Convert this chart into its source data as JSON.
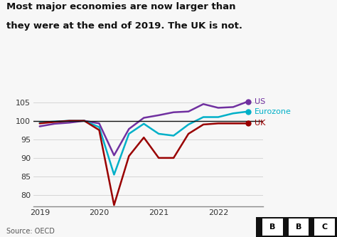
{
  "title_line1": "Most major economies are now larger than",
  "title_line2": "they were at the end of 2019. The UK is not.",
  "source": "Source: OECD",
  "x_labels": [
    "2019",
    "2020",
    "2021",
    "2022"
  ],
  "x_tick_positions": [
    2019.0,
    2020.0,
    2021.0,
    2022.0
  ],
  "us": {
    "label": "US",
    "color": "#7030a0",
    "x": [
      2019.0,
      2019.25,
      2019.5,
      2019.75,
      2020.0,
      2020.25,
      2020.5,
      2020.75,
      2021.0,
      2021.25,
      2021.5,
      2021.75,
      2022.0,
      2022.25,
      2022.5
    ],
    "values": [
      98.5,
      99.2,
      99.5,
      100.0,
      99.3,
      90.7,
      97.8,
      100.8,
      101.5,
      102.3,
      102.5,
      104.5,
      103.5,
      103.7,
      105.2
    ]
  },
  "eurozone": {
    "label": "Eurozone",
    "color": "#00b0c8",
    "x": [
      2019.0,
      2019.25,
      2019.5,
      2019.75,
      2020.0,
      2020.25,
      2020.5,
      2020.75,
      2021.0,
      2021.25,
      2021.5,
      2021.75,
      2022.0,
      2022.25,
      2022.5
    ],
    "values": [
      99.5,
      99.8,
      100.0,
      100.0,
      98.3,
      85.5,
      96.5,
      99.2,
      96.5,
      96.0,
      99.0,
      101.0,
      101.0,
      102.0,
      102.5
    ]
  },
  "uk": {
    "label": "UK",
    "color": "#990000",
    "x": [
      2019.0,
      2019.25,
      2019.5,
      2019.75,
      2020.0,
      2020.25,
      2020.5,
      2020.75,
      2021.0,
      2021.25,
      2021.5,
      2021.75,
      2022.0,
      2022.25,
      2022.5
    ],
    "values": [
      99.3,
      99.7,
      100.0,
      100.0,
      97.5,
      77.3,
      90.5,
      95.5,
      90.0,
      90.0,
      96.5,
      99.0,
      99.3,
      99.3,
      99.3
    ]
  },
  "xlim": [
    2018.9,
    2022.75
  ],
  "ylim": [
    77,
    107
  ],
  "yticks": [
    80,
    85,
    90,
    95,
    100,
    105
  ],
  "bg_color": "#f7f7f7",
  "plot_bg_color": "#f7f7f7",
  "grid_color": "#d0d0d0",
  "hline_y": 100,
  "hline_color": "#111111"
}
